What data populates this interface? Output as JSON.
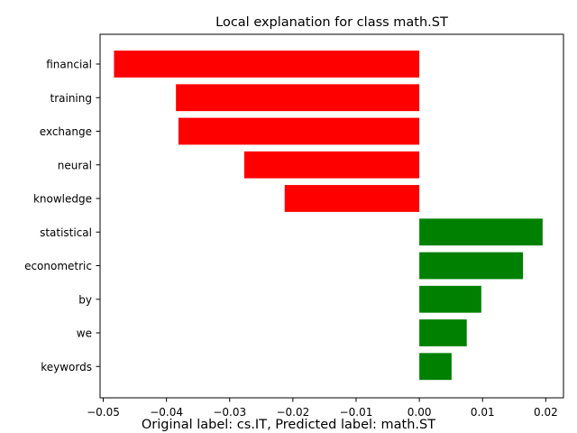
{
  "chart_data": {
    "type": "bar",
    "orientation": "horizontal",
    "title": "Local explanation for class math.ST",
    "caption": "Original label: cs.IT, Predicted label: math.ST",
    "xlabel": "",
    "ylabel": "",
    "categories": [
      "financial",
      "training",
      "exchange",
      "neural",
      "knowledge",
      "statistical",
      "econometric",
      "by",
      "we",
      "keywords"
    ],
    "values": [
      -0.0483,
      -0.0385,
      -0.0381,
      -0.0277,
      -0.0213,
      0.0195,
      0.0164,
      0.0098,
      0.0075,
      0.0051
    ],
    "xlim": [
      -0.0505,
      0.0228
    ],
    "xticks": [
      -0.05,
      -0.04,
      -0.03,
      -0.02,
      -0.01,
      0.0,
      0.01,
      0.02
    ],
    "xtick_labels": [
      "−0.05",
      "−0.04",
      "−0.03",
      "−0.02",
      "−0.01",
      "0.00",
      "0.01",
      "0.02"
    ],
    "grid": false,
    "legend": "none",
    "colors": {
      "negative": "#ff0000",
      "positive": "#008000"
    }
  }
}
